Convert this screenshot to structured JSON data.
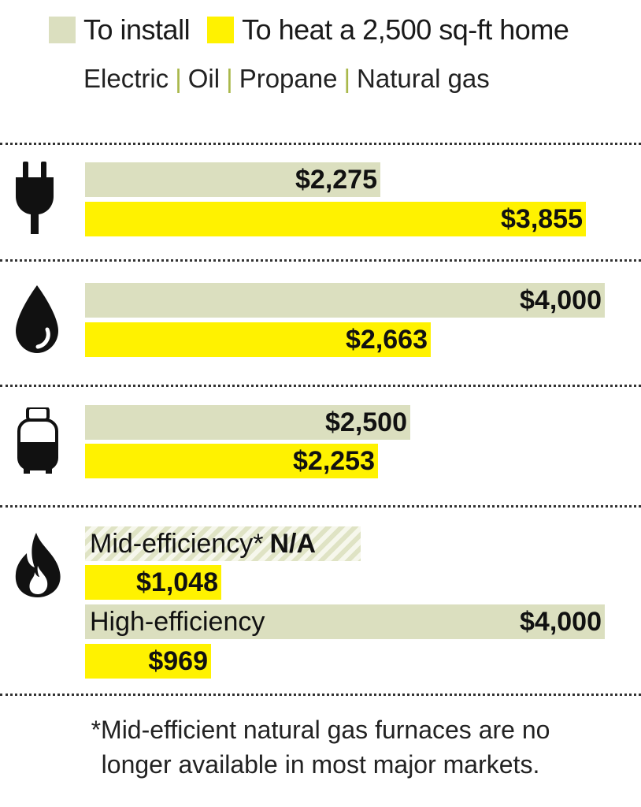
{
  "colors": {
    "install": "#dbdfbf",
    "heat": "#fff200",
    "separator": "#a9b84a"
  },
  "legend": {
    "install_label": "To install",
    "heat_label": "To heat a 2,500 sq-ft home",
    "fuels": [
      "Electric",
      "Oil",
      "Propane",
      "Natural gas"
    ]
  },
  "chart_data": {
    "type": "bar",
    "orientation": "horizontal",
    "categories": [
      "Electric",
      "Oil",
      "Propane",
      "Natural gas (Mid-efficiency)",
      "Natural gas (High-efficiency)"
    ],
    "series": [
      {
        "name": "To install",
        "values": [
          2275,
          4000,
          2500,
          null,
          4000
        ]
      },
      {
        "name": "To heat a 2,500 sq-ft home",
        "values": [
          3855,
          2663,
          2253,
          1048,
          969
        ]
      }
    ],
    "xlim": [
      0,
      4000
    ],
    "grid": false,
    "legend_position": "top-left",
    "groups": [
      {
        "icon": "plug-icon",
        "install_label": "$2,275",
        "heat_label": "$3,855"
      },
      {
        "icon": "oil-drop-icon",
        "install_label": "$4,000",
        "heat_label": "$2,663"
      },
      {
        "icon": "propane-tank-icon",
        "install_label": "$2,500",
        "heat_label": "$2,253"
      },
      {
        "icon": "flame-icon",
        "mid": {
          "label": "Mid-efficiency*",
          "install_label": "N/A",
          "heat_label": "$1,048"
        },
        "high": {
          "label": "High-efficiency",
          "install_label": "$4,000",
          "heat_label": "$969"
        }
      }
    ]
  },
  "footnote": {
    "line1": "*Mid-efficient natural gas furnaces are no",
    "line2": "longer available in most major markets."
  }
}
